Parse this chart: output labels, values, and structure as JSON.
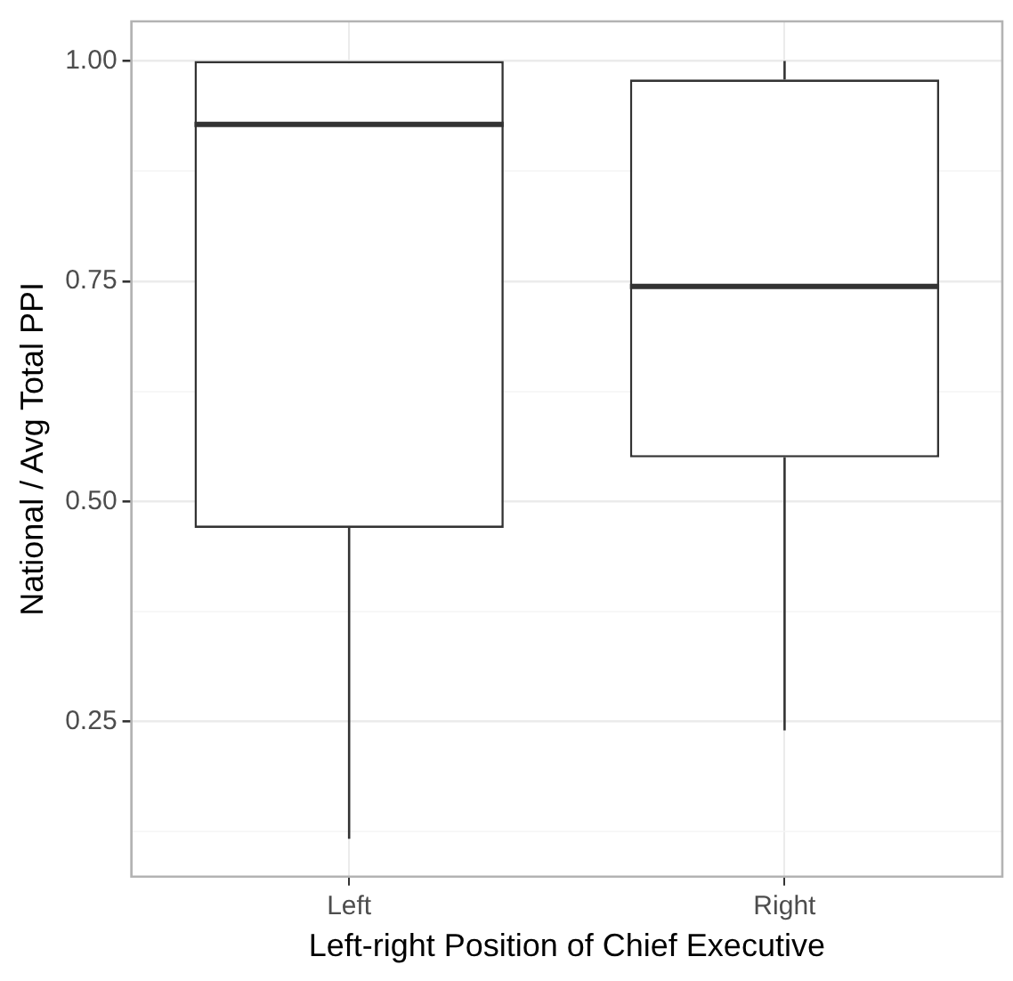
{
  "chart_data": {
    "type": "box",
    "xlabel": "Left-right Position of Chief Executive",
    "ylabel": "National / Avg Total PPI",
    "categories": [
      "Left",
      "Right"
    ],
    "boxes": [
      {
        "low": 0.117,
        "q1": 0.47,
        "median": 0.928,
        "q3": 1.0,
        "high": 1.0
      },
      {
        "low": 0.24,
        "q1": 0.55,
        "median": 0.744,
        "q3": 0.979,
        "high": 1.0
      }
    ],
    "ylim": [
      0.074,
      1.045
    ],
    "yticks": [
      {
        "value": 0.125,
        "label": null
      },
      0.25,
      {
        "value": 0.375,
        "label": null
      },
      {
        "value": 0.5,
        "label": "0.50"
      },
      {
        "value": 0.625,
        "label": null
      },
      0.75,
      {
        "value": 0.875,
        "label": null
      },
      {
        "value": 1,
        "label": "1.00"
      }
    ],
    "grid": true,
    "legend": false
  }
}
